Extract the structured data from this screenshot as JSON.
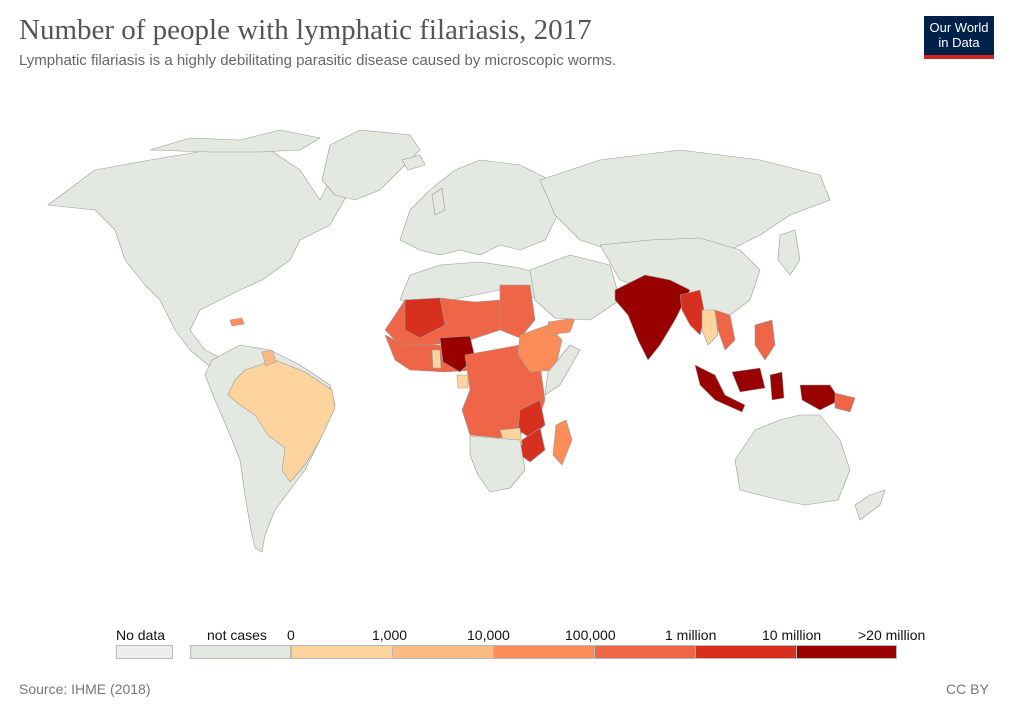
{
  "header": {
    "title": "Number of people with lymphatic filariasis, 2017",
    "subtitle": "Lymphatic filariasis is a highly debilitating parasitic disease caused by microscopic worms."
  },
  "logo": {
    "line1": "Our World",
    "line2": "in Data"
  },
  "colors": {
    "no_data": "#eeeeee",
    "not_cases": "#e3e8e0",
    "b0_1k": "#fdd49e",
    "b1k_10k": "#fdbb84",
    "b10k_100k": "#fc8d59",
    "b100k_1m": "#ef6548",
    "b1m_10m": "#d7301f",
    "b10m_20m": "#990000",
    "border": "#9a9a9a"
  },
  "legend": {
    "no_data_label": "No data",
    "not_cases_label": "not cases",
    "ticks": [
      "0",
      "1,000",
      "10,000",
      "100,000",
      "1 million",
      "10 million",
      ">20 million"
    ]
  },
  "footer": {
    "source": "Source: IHME (2018)",
    "license": "CC BY"
  }
}
